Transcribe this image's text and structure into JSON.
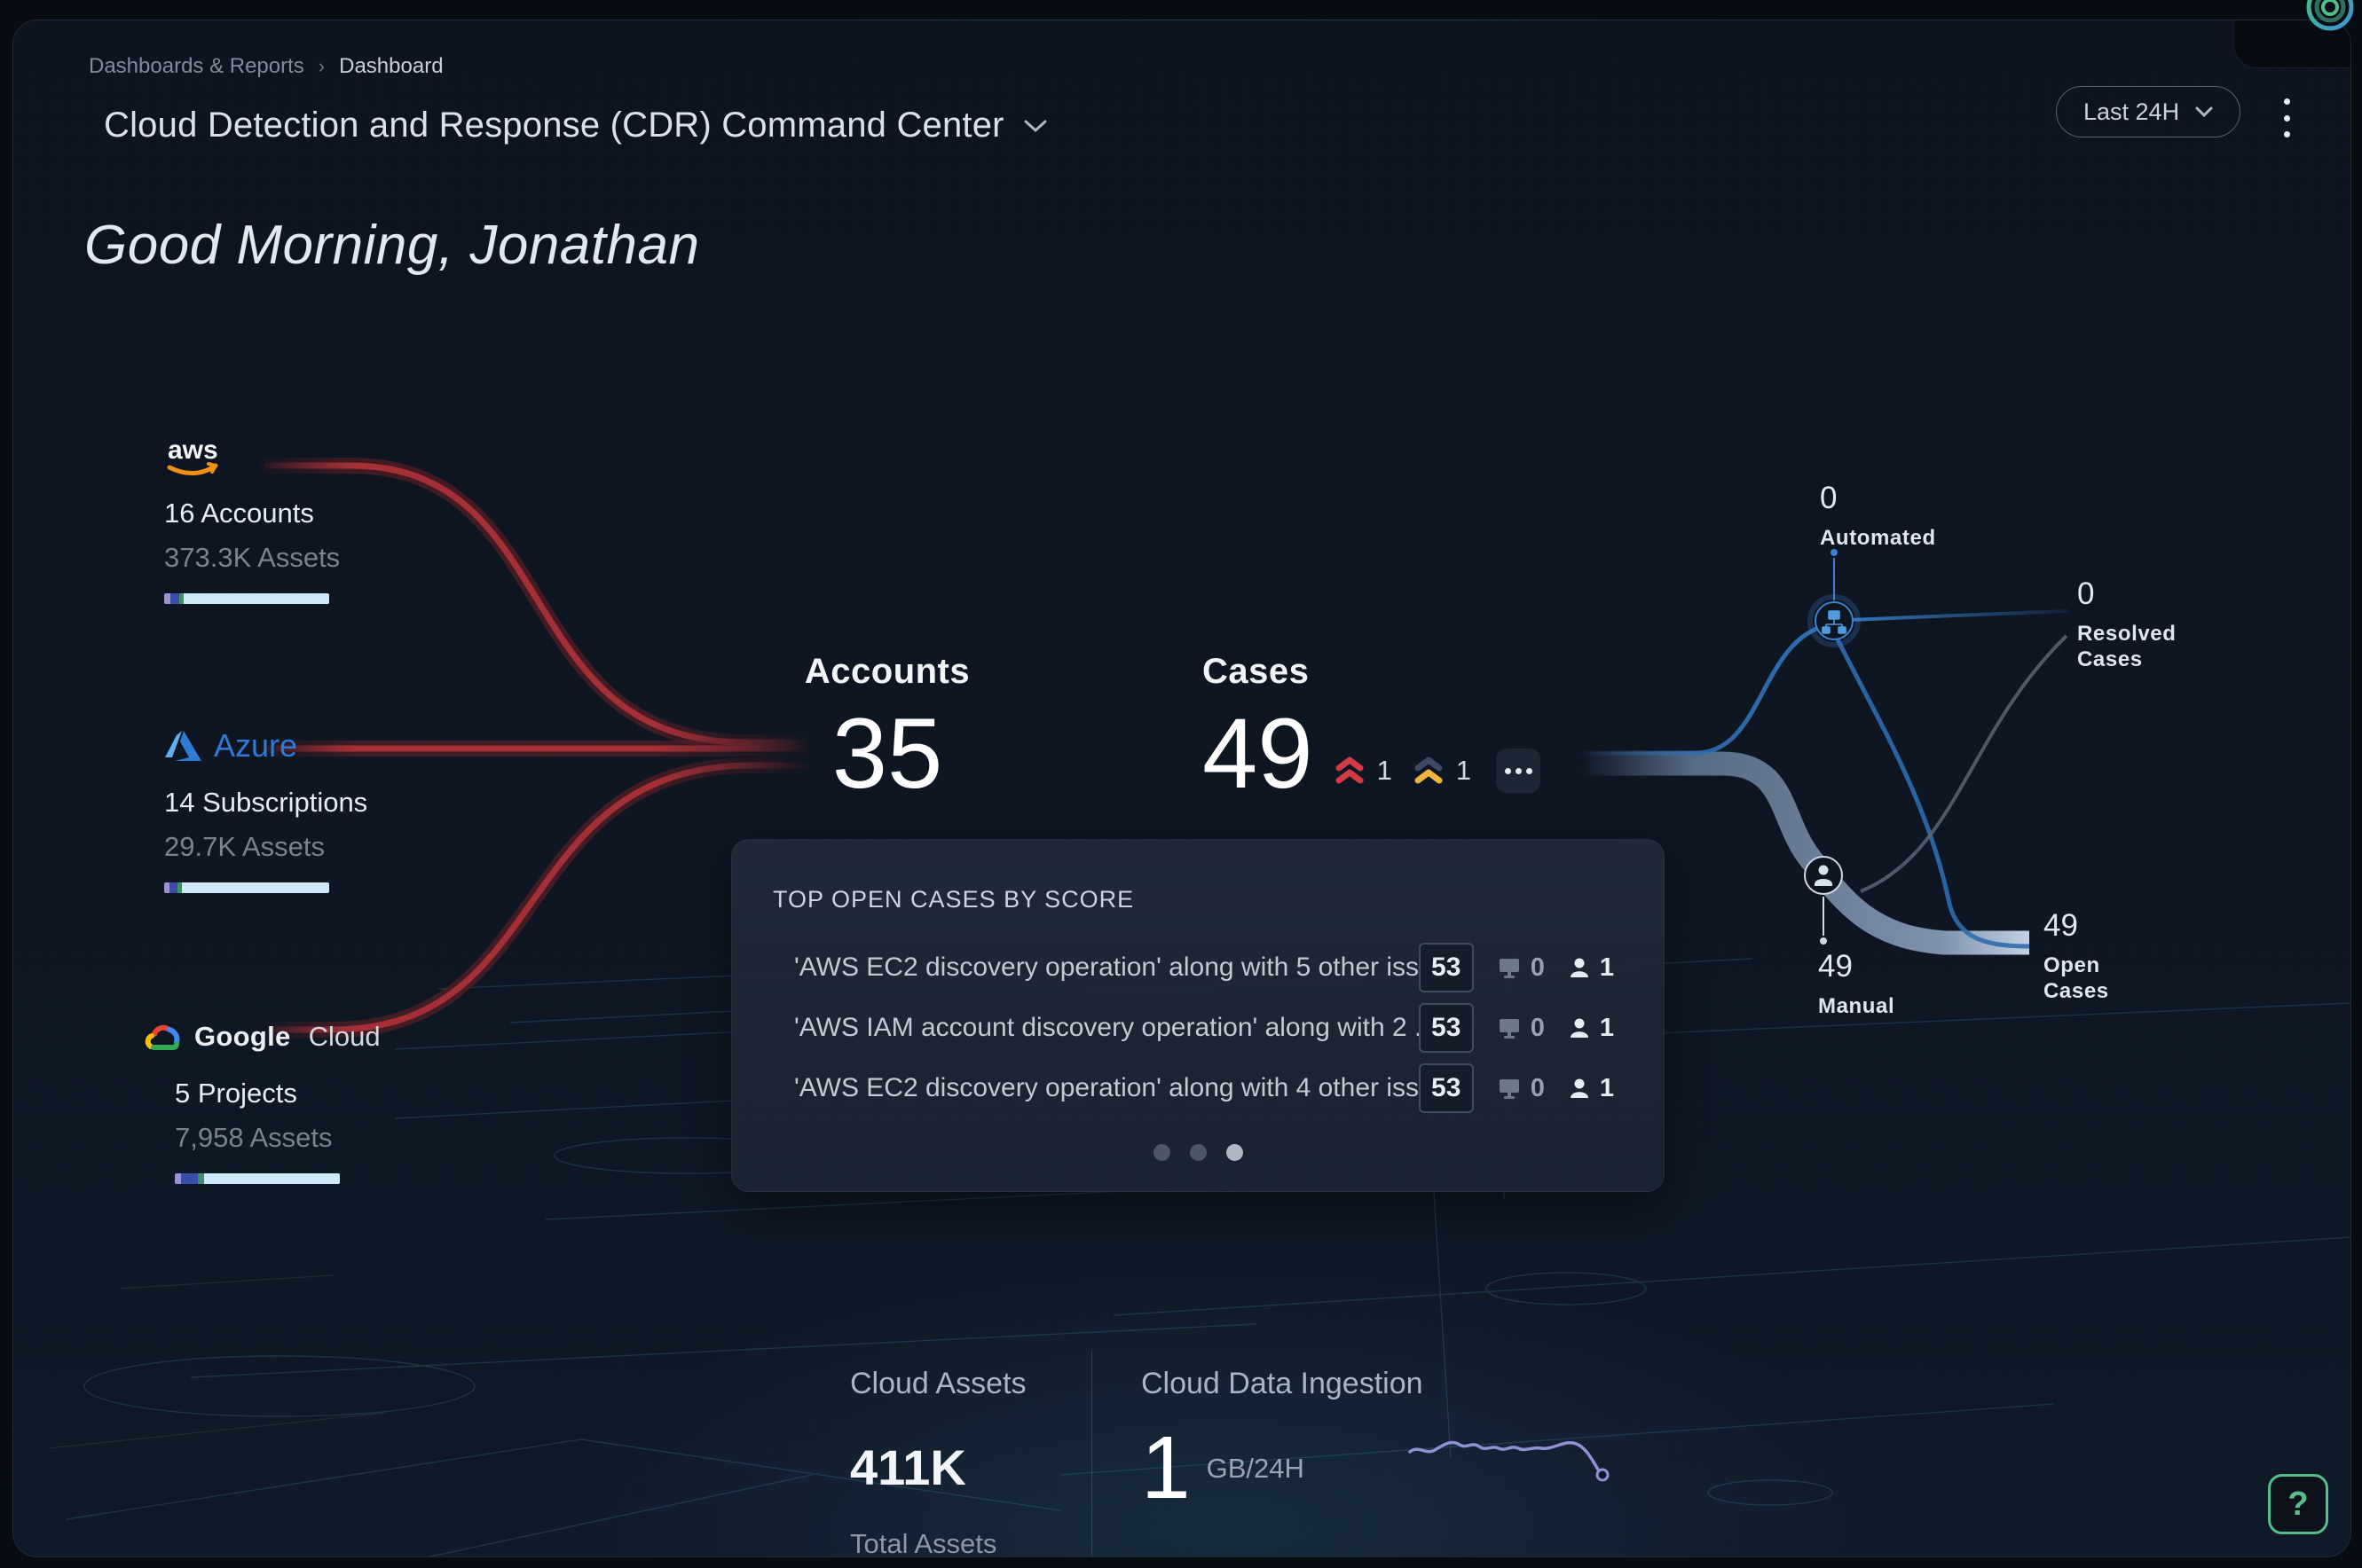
{
  "breadcrumb": {
    "parent": "Dashboards & Reports",
    "separator": "›",
    "current": "Dashboard"
  },
  "header": {
    "title": "Cloud Detection and Response (CDR) Command Center",
    "time_range": "Last 24H"
  },
  "greeting": "Good Morning, Jonathan",
  "providers": [
    {
      "name": "aws",
      "count_label": "16 Accounts",
      "assets_label": "373.3K Assets",
      "bar": [
        4,
        5,
        3,
        88
      ]
    },
    {
      "name": "Azure",
      "count_label": "14 Subscriptions",
      "assets_label": "29.7K Assets",
      "bar": [
        3,
        5,
        3,
        89
      ]
    },
    {
      "name": "Google Cloud",
      "word1": "Google",
      "word2": "Cloud",
      "count_label": "5 Projects",
      "assets_label": "7,958 Assets",
      "bar": [
        4,
        10,
        4,
        82
      ]
    }
  ],
  "kpis": {
    "accounts_label": "Accounts",
    "accounts_value": "35",
    "cases_label": "Cases",
    "cases_value": "49",
    "high_count": "1",
    "medium_count": "1"
  },
  "flow": {
    "automated_value": "0",
    "automated_label": "Automated",
    "resolved_value": "0",
    "resolved_label": "Resolved Cases",
    "manual_value": "49",
    "manual_label": "Manual",
    "open_value": "49",
    "open_label": "Open Cases"
  },
  "top_cases": {
    "title": "TOP OPEN CASES BY SCORE",
    "rows": [
      {
        "name": "'AWS EC2 discovery operation' along with 5 other iss...",
        "score": "53",
        "hosts": "0",
        "users": "1"
      },
      {
        "name": "'AWS IAM account discovery operation' along with 2 ...",
        "score": "53",
        "hosts": "0",
        "users": "1"
      },
      {
        "name": "'AWS EC2 discovery operation' along with 4 other iss...",
        "score": "53",
        "hosts": "0",
        "users": "1"
      }
    ],
    "pager": {
      "dots": 3,
      "active_index": 2
    }
  },
  "footer": {
    "cloud_assets_title": "Cloud Assets",
    "cloud_assets_value": "411K",
    "cloud_assets_sub": "Total Assets",
    "ingestion_title": "Cloud Data Ingestion",
    "ingestion_value": "1",
    "ingestion_unit": "GB/24H"
  },
  "help_label": "?",
  "colors": {
    "severity_high": "#d23b45",
    "severity_medium": "#f0b43c",
    "severity_medium_top": "#3d4a63",
    "aws_orange": "#f29111",
    "azure_blue": "#2f7ad4",
    "google_red": "#ea4335",
    "google_blue": "#4285f4",
    "google_yellow": "#fbbc05",
    "google_green": "#34a853",
    "flow_blue": "#3b82d0",
    "flow_band": "#6b7f9c",
    "help_green": "#58bd8b",
    "bar_purple": "#9b8fd8",
    "bar_indigo": "#3a4da8",
    "bar_green": "#3f8f6a",
    "bar_light": "#cfe9f8",
    "red_line": "#a93137",
    "wireframe": "#3e7ea0"
  }
}
